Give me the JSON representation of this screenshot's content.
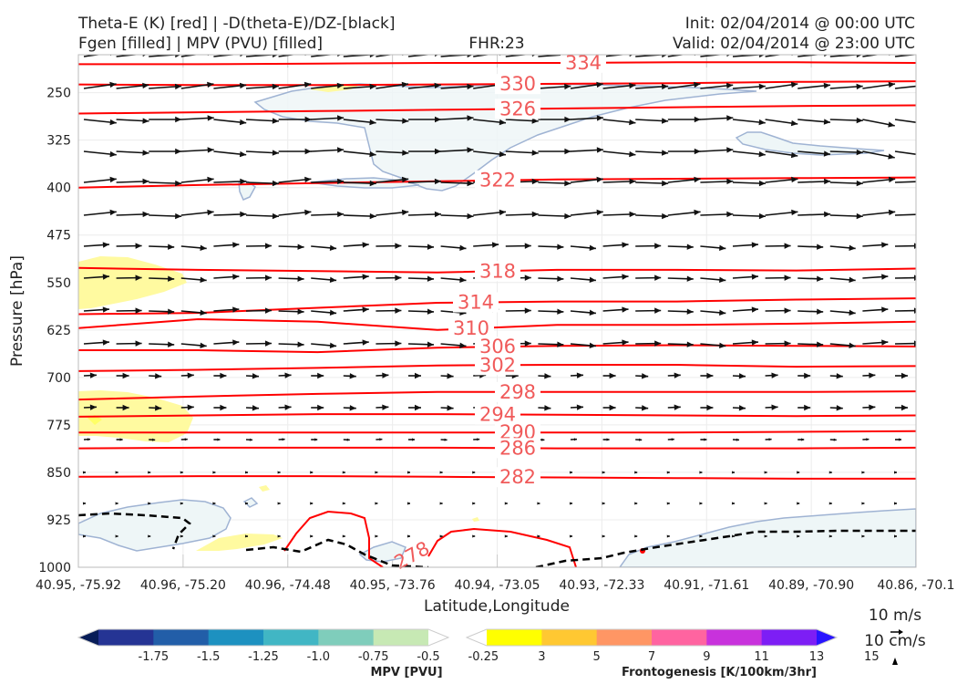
{
  "header": {
    "title_left_1": "Theta-E (K) [red] | -D(theta-E)/DZ-[black]",
    "title_left_2": "Fgen [filled] | MPV (PVU) [filled]",
    "title_center": "FHR:23",
    "title_right_1": "Init: 02/04/2014 @ 00:00 UTC",
    "title_right_2": "Valid: 02/04/2014 @ 23:00 UTC"
  },
  "chart_data": {
    "type": "cross-section",
    "xlabel": "Latitude,Longitude",
    "ylabel": "Pressure [hPa]",
    "x_ticks": [
      "40.95, -75.92",
      "40.96, -75.20",
      "40.96, -74.48",
      "40.95, -73.76",
      "40.94, -73.05",
      "40.93, -72.33",
      "40.91, -71.61",
      "40.89, -70.90",
      "40.86, -70.1"
    ],
    "y_ticks": [
      "250",
      "325",
      "400",
      "475",
      "550",
      "625",
      "700",
      "775",
      "850",
      "925",
      "1000"
    ],
    "ylim": [
      1000,
      190
    ],
    "grid": true,
    "theta_e_color": "#ff0000",
    "theta_e_contours": [
      {
        "value": "334",
        "y": [
          205,
          205,
          204,
          203,
          203,
          202,
          202,
          203
        ]
      },
      {
        "value": "330",
        "y": [
          237,
          238,
          238,
          237,
          236,
          235,
          233,
          232
        ]
      },
      {
        "value": "326",
        "y": [
          283,
          281,
          279,
          277,
          275,
          273,
          271,
          270
        ]
      },
      {
        "value": "322",
        "y": [
          400,
          396,
          393,
          390,
          387,
          386,
          385,
          384
        ]
      },
      {
        "value": "318",
        "y": [
          527,
          530,
          532,
          534,
          530,
          530,
          531,
          528
        ]
      },
      {
        "value": "314",
        "y": [
          600,
          598,
          590,
          582,
          580,
          580,
          577,
          575
        ]
      },
      {
        "value": "310",
        "y": [
          622,
          608,
          612,
          625,
          617,
          617,
          615,
          612
        ]
      },
      {
        "value": "306",
        "y": [
          657,
          657,
          660,
          653,
          650,
          649,
          650,
          651
        ]
      },
      {
        "value": "302",
        "y": [
          690,
          688,
          685,
          681,
          680,
          680,
          683,
          682
        ]
      },
      {
        "value": "298",
        "y": [
          735,
          730,
          726,
          723,
          723,
          723,
          723,
          722
        ]
      },
      {
        "value": "294",
        "y": [
          762,
          760,
          758,
          758,
          759,
          760,
          761,
          760
        ]
      },
      {
        "value": "290",
        "y": [
          787,
          787,
          787,
          787,
          787,
          787,
          786,
          785
        ]
      },
      {
        "value": "286",
        "y": [
          812,
          811,
          811,
          811,
          812,
          812,
          812,
          811
        ]
      },
      {
        "value": "282",
        "y": [
          857,
          856,
          856,
          857,
          858,
          859,
          860,
          860
        ]
      }
    ],
    "mpv_colorbar": {
      "label": "MPV [PVU]",
      "ticks": [
        "-1.75",
        "-1.5",
        "-1.25",
        "-1.0",
        "-0.75",
        "-0.5",
        "-0.25"
      ],
      "colors": [
        "#081d58",
        "#253494",
        "#225ea8",
        "#1d91c0",
        "#41b6c4",
        "#7fcdbb",
        "#c7e9b4",
        "#ffffff"
      ]
    },
    "fgen_colorbar": {
      "label": "Frontogenesis [K/100km/3hr]",
      "ticks": [
        "3",
        "5",
        "7",
        "9",
        "11",
        "13",
        "15"
      ],
      "colors": [
        "#ffffff",
        "#ffff00",
        "#ffc832",
        "#ff9664",
        "#ff64a0",
        "#c832dc",
        "#7d1ef5",
        "#2814ff"
      ]
    },
    "quiver_keys": [
      "10 m/s",
      "10 cm/s"
    ]
  }
}
